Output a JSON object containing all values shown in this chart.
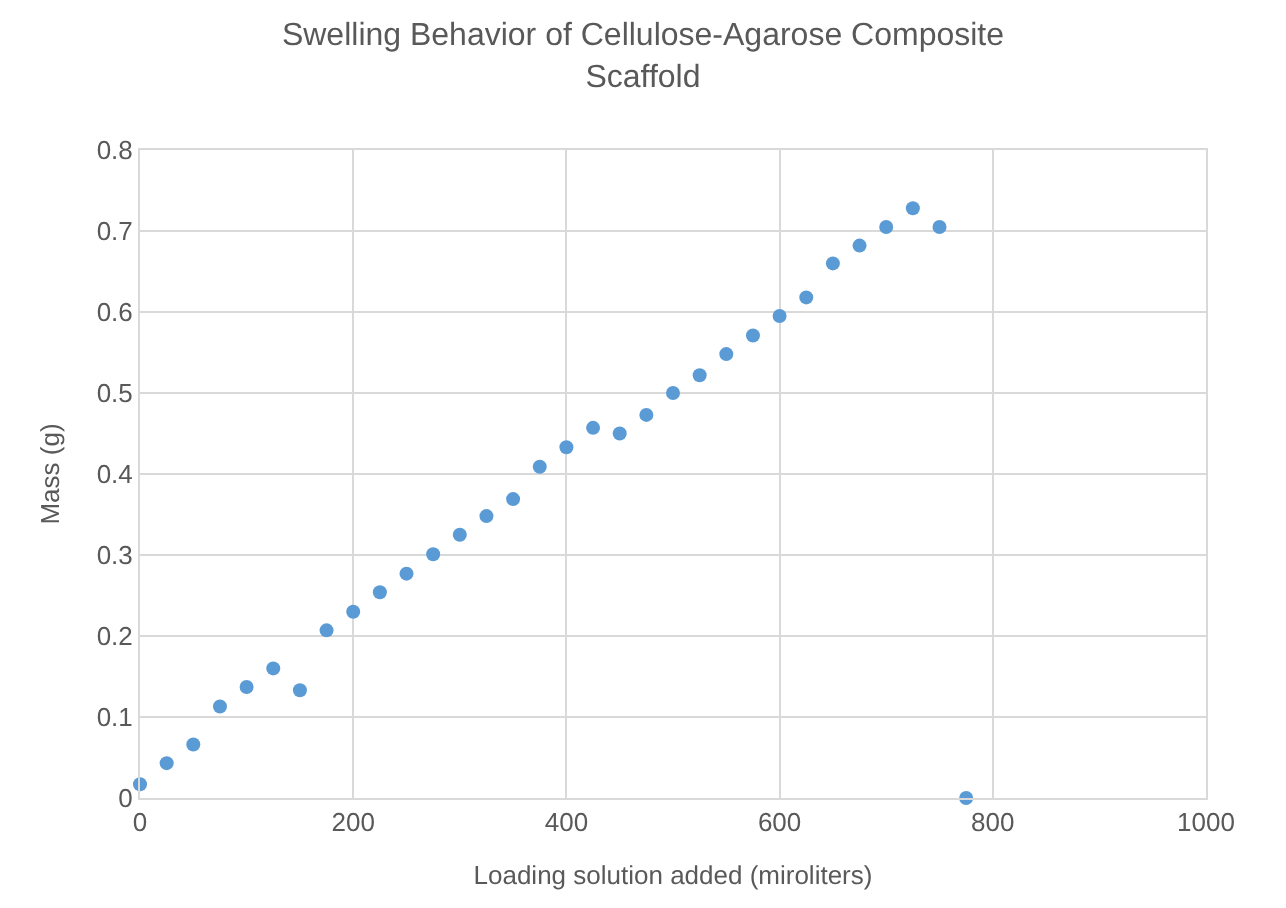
{
  "chart_data": {
    "type": "scatter",
    "title": "Swelling Behavior of Cellulose-Agarose Composite Scaffold",
    "xlabel": "Loading solution added (miroliters)",
    "ylabel": "Mass (g)",
    "x": [
      0,
      25,
      50,
      75,
      100,
      125,
      150,
      175,
      200,
      225,
      250,
      275,
      300,
      325,
      350,
      375,
      400,
      425,
      450,
      475,
      500,
      525,
      550,
      575,
      600,
      625,
      650,
      675,
      700,
      725,
      750,
      775
    ],
    "series": [
      {
        "color": "#5b9bd5",
        "values": [
          0.017,
          0.043,
          0.066,
          0.113,
          0.137,
          0.16,
          0.133,
          0.207,
          0.23,
          0.254,
          0.277,
          0.301,
          0.325,
          0.348,
          0.369,
          0.409,
          0.433,
          0.457,
          0.45,
          0.473,
          0.5,
          0.522,
          0.548,
          0.571,
          0.595,
          0.618,
          0.66,
          0.682,
          0.705,
          0.728,
          0.705,
          0.0
        ]
      }
    ],
    "xlim": [
      0,
      1000
    ],
    "xticks": [
      0,
      200,
      400,
      600,
      800,
      1000
    ],
    "ylim": [
      0,
      0.8
    ],
    "yticks": [
      0,
      0.1,
      0.2,
      0.3,
      0.4,
      0.5,
      0.6,
      0.7,
      0.8
    ],
    "grid": true,
    "marker": "circle"
  }
}
